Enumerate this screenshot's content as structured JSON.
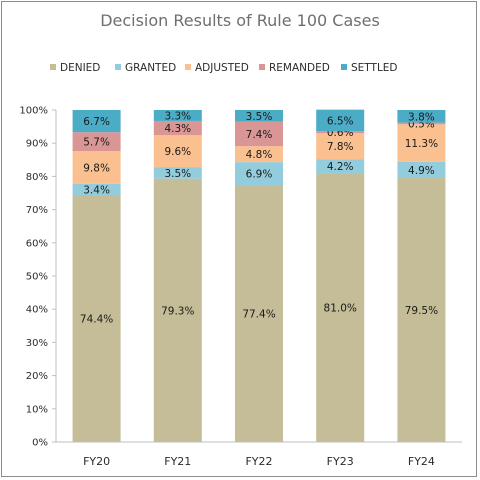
{
  "chart_data": {
    "type": "bar",
    "stacked": true,
    "title": "Decision Results of Rule 100 Cases",
    "categories": [
      "FY20",
      "FY21",
      "FY22",
      "FY23",
      "FY24"
    ],
    "ylim": [
      0,
      100
    ],
    "yticks": [
      "0%",
      "10%",
      "20%",
      "30%",
      "40%",
      "50%",
      "60%",
      "70%",
      "80%",
      "90%",
      "100%"
    ],
    "legend_position": "top",
    "grid": false,
    "series": [
      {
        "name": "DENIED",
        "color": "#c4bd97",
        "values": [
          74.4,
          79.3,
          77.4,
          81.0,
          79.5
        ],
        "labels": [
          "74.4%",
          "79.3%",
          "77.4%",
          "81.0%",
          "79.5%"
        ]
      },
      {
        "name": "GRANTED",
        "color": "#93cddd",
        "values": [
          3.4,
          3.5,
          6.9,
          4.2,
          4.9
        ],
        "labels": [
          "3.4%",
          "3.5%",
          "6.9%",
          "4.2%",
          "4.9%"
        ]
      },
      {
        "name": "ADJUSTED",
        "color": "#fac090",
        "values": [
          9.8,
          9.6,
          4.8,
          7.8,
          11.3
        ],
        "labels": [
          "9.8%",
          "9.6%",
          "4.8%",
          "7.8%",
          "11.3%"
        ]
      },
      {
        "name": "REMANDED",
        "color": "#d99694",
        "values": [
          5.7,
          4.3,
          7.4,
          0.6,
          0.5
        ],
        "labels": [
          "5.7%",
          "4.3%",
          "7.4%",
          "0.6%",
          "0.5%"
        ]
      },
      {
        "name": "SETTLED",
        "color": "#4bacc6",
        "values": [
          6.7,
          3.3,
          3.5,
          6.5,
          3.8
        ],
        "labels": [
          "6.7%",
          "3.3%",
          "3.5%",
          "6.5%",
          "3.8%"
        ]
      }
    ]
  }
}
